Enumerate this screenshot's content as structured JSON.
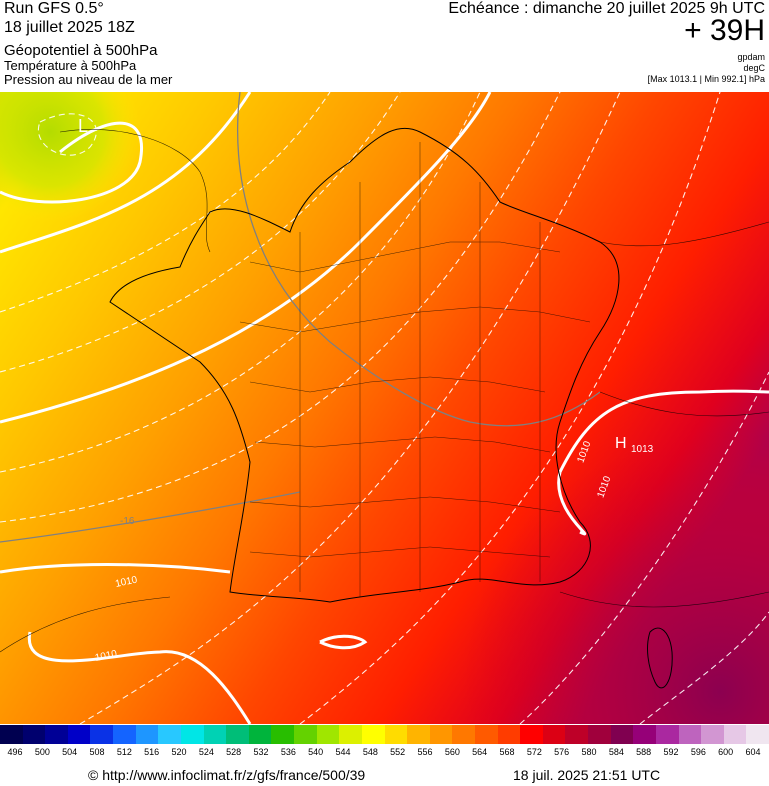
{
  "header": {
    "run": "Run GFS 0.5°",
    "date": "18 juillet 2025 18Z",
    "field1": "Géopotentiel à 500hPa",
    "field2": "Température à 500hPa",
    "field3": "Pression au niveau de la mer",
    "echeance": "Echéance : dimanche 20 juillet 2025 9h UTC",
    "lead": "+ 39H",
    "unit1": "gpdam",
    "unit2": "degC",
    "minmax": "[Max 1013.1 | Min 992.1] hPa"
  },
  "map": {
    "labels": {
      "low": "L",
      "high": "H",
      "high_value": "1013",
      "iso_1010_a": "1010",
      "iso_1010_b": "1010",
      "iso_1010_c": "1010",
      "iso_1010_d": "1010",
      "iso_temp": "-16"
    }
  },
  "scale": {
    "values": [
      "496",
      "500",
      "504",
      "508",
      "512",
      "516",
      "520",
      "524",
      "528",
      "532",
      "536",
      "540",
      "544",
      "548",
      "552",
      "556",
      "560",
      "564",
      "568",
      "572",
      "576",
      "580",
      "584",
      "588",
      "592",
      "596",
      "600",
      "604"
    ],
    "colors": [
      "#000050",
      "#00006e",
      "#000096",
      "#0000c8",
      "#0a32e6",
      "#1464ff",
      "#1e96ff",
      "#28c8ff",
      "#00e6e6",
      "#00d2b4",
      "#00be78",
      "#00b43c",
      "#28be00",
      "#64d200",
      "#a0e600",
      "#dcf000",
      "#ffff00",
      "#ffdc00",
      "#ffb400",
      "#ff9600",
      "#ff7800",
      "#ff5a00",
      "#ff3c00",
      "#ff0000",
      "#dc0014",
      "#be0028",
      "#a0003c",
      "#800050",
      "#960078",
      "#aa28a0",
      "#be64be",
      "#d296d2",
      "#e6c8e6",
      "#f0e6f0"
    ]
  },
  "footer": {
    "url": "© http://www.infoclimat.fr/z/gfs/france/500/39",
    "timestamp": "18 juil. 2025 21:51 UTC"
  }
}
